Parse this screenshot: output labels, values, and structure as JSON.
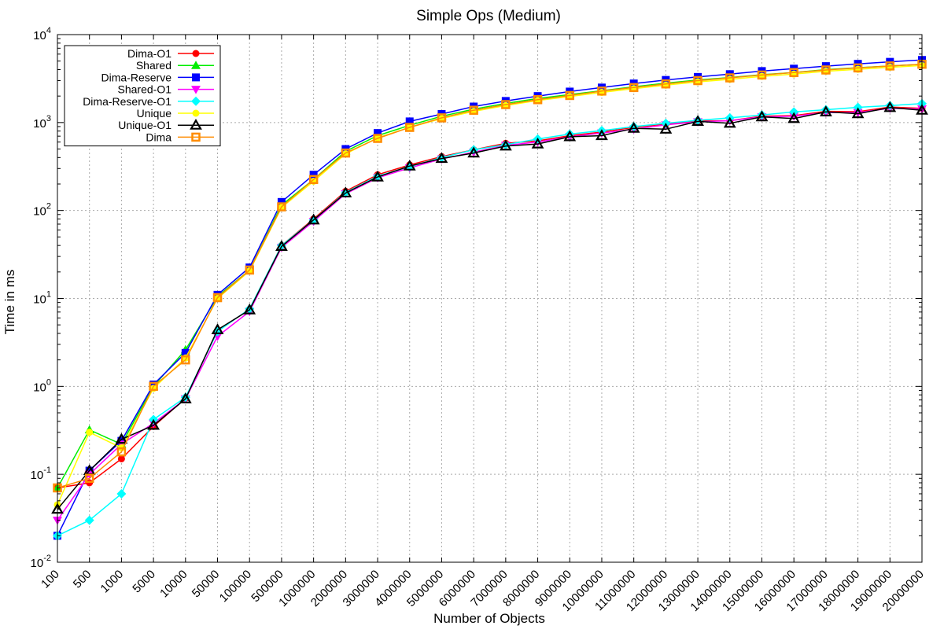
{
  "chart_data": {
    "type": "line",
    "title": "Simple Ops (Medium)",
    "xlabel": "Number of Objects",
    "ylabel": "Time in ms",
    "y_scale": "log",
    "ylim": [
      0.01,
      10000
    ],
    "y_ticks": [
      {
        "base": "10",
        "exp": "-2"
      },
      {
        "base": "10",
        "exp": "-1"
      },
      {
        "base": "10",
        "exp": "0"
      },
      {
        "base": "10",
        "exp": "1"
      },
      {
        "base": "10",
        "exp": "2"
      },
      {
        "base": "10",
        "exp": "3"
      },
      {
        "base": "10",
        "exp": "4"
      }
    ],
    "grid": true,
    "legend_position": "top-left",
    "categories": [
      "100",
      "500",
      "1000",
      "5000",
      "10000",
      "50000",
      "100000",
      "500000",
      "1000000",
      "2000000",
      "3000000",
      "4000000",
      "5000000",
      "6000000",
      "7000000",
      "8000000",
      "9000000",
      "10000000",
      "11000000",
      "12000000",
      "13000000",
      "14000000",
      "15000000",
      "16000000",
      "17000000",
      "18000000",
      "19000000",
      "20000000"
    ],
    "series": [
      {
        "name": "Dima-O1",
        "color": "#ff0000",
        "marker": "circle",
        "values": [
          0.07,
          0.08,
          0.15,
          0.35,
          0.73,
          4.3,
          7.5,
          40,
          80,
          165,
          255,
          330,
          410,
          490,
          580,
          620,
          710,
          780,
          880,
          960,
          1040,
          1050,
          1180,
          1200,
          1340,
          1330,
          1500,
          1450
        ]
      },
      {
        "name": "Shared",
        "color": "#00ee00",
        "marker": "triangle-up",
        "values": [
          0.07,
          0.32,
          0.22,
          1.0,
          2.6,
          10.5,
          21,
          115,
          225,
          470,
          710,
          930,
          1180,
          1420,
          1650,
          1880,
          2080,
          2300,
          2550,
          2800,
          3050,
          3250,
          3500,
          3700,
          4000,
          4200,
          4400,
          4600
        ]
      },
      {
        "name": "Dima-Reserve",
        "color": "#0000ff",
        "marker": "square",
        "values": [
          0.02,
          0.11,
          0.24,
          1.05,
          2.4,
          11,
          22.5,
          125,
          255,
          500,
          760,
          1030,
          1250,
          1520,
          1760,
          2000,
          2250,
          2500,
          2780,
          3050,
          3300,
          3550,
          3850,
          4100,
          4380,
          4650,
          4900,
          5150
        ]
      },
      {
        "name": "Shared-O1",
        "color": "#ff00ff",
        "marker": "triangle-down",
        "values": [
          0.03,
          0.1,
          0.22,
          0.38,
          0.72,
          3.7,
          7.1,
          38,
          75,
          155,
          235,
          305,
          385,
          460,
          550,
          600,
          690,
          760,
          840,
          940,
          1020,
          1050,
          1160,
          1180,
          1300,
          1300,
          1450,
          1430
        ]
      },
      {
        "name": "Dima-Reserve-O1",
        "color": "#00ffff",
        "marker": "diamond",
        "values": [
          0.02,
          0.03,
          0.06,
          0.42,
          0.75,
          4.2,
          7.6,
          40,
          78,
          160,
          245,
          315,
          400,
          490,
          560,
          650,
          740,
          810,
          900,
          980,
          1060,
          1130,
          1220,
          1320,
          1400,
          1490,
          1560,
          1640
        ]
      },
      {
        "name": "Unique",
        "color": "#ffff00",
        "marker": "circle",
        "values": [
          0.045,
          0.3,
          0.2,
          0.95,
          2.1,
          10,
          20.5,
          108,
          215,
          440,
          670,
          880,
          1110,
          1340,
          1560,
          1780,
          1980,
          2200,
          2430,
          2660,
          2900,
          3100,
          3350,
          3560,
          3830,
          4030,
          4250,
          4450
        ]
      },
      {
        "name": "Unique-O1",
        "color": "#000000",
        "marker": "triangle-up-open",
        "values": [
          0.04,
          0.11,
          0.25,
          0.36,
          0.72,
          4.4,
          7.4,
          39,
          78,
          158,
          240,
          320,
          390,
          450,
          540,
          570,
          690,
          710,
          860,
          840,
          1030,
          980,
          1160,
          1110,
          1320,
          1260,
          1480,
          1380
        ]
      },
      {
        "name": "Dima",
        "color": "#ff8c00",
        "marker": "square-open",
        "values": [
          0.07,
          0.09,
          0.18,
          1.0,
          2.0,
          10.2,
          21,
          110,
          225,
          450,
          660,
          880,
          1130,
          1380,
          1600,
          1820,
          2030,
          2280,
          2500,
          2750,
          3000,
          3220,
          3470,
          3700,
          3960,
          4180,
          4400,
          4600
        ]
      }
    ]
  }
}
